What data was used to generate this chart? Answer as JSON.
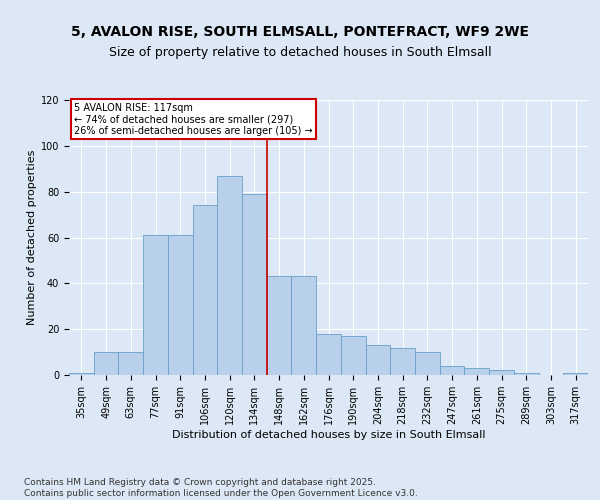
{
  "title_line1": "5, AVALON RISE, SOUTH ELMSALL, PONTEFRACT, WF9 2WE",
  "title_line2": "Size of property relative to detached houses in South Elmsall",
  "xlabel": "Distribution of detached houses by size in South Elmsall",
  "ylabel": "Number of detached properties",
  "bar_color": "#b8d0ea",
  "bar_edge_color": "#6a9fc8",
  "fig_bg_color": "#dce8f5",
  "ax_bg_color": "#dce8f5",
  "grid_color": "#ffffff",
  "vline_color": "#cc0000",
  "annotation_text": "5 AVALON RISE: 117sqm\n← 74% of detached houses are smaller (297)\n26% of semi-detached houses are larger (105) →",
  "annotation_box_color": "#cc0000",
  "categories": [
    "35sqm",
    "49sqm",
    "63sqm",
    "77sqm",
    "91sqm",
    "106sqm",
    "120sqm",
    "134sqm",
    "148sqm",
    "162sqm",
    "176sqm",
    "190sqm",
    "204sqm",
    "218sqm",
    "232sqm",
    "247sqm",
    "261sqm",
    "275sqm",
    "289sqm",
    "303sqm",
    "317sqm"
  ],
  "values": [
    1,
    10,
    10,
    61,
    61,
    74,
    87,
    79,
    43,
    43,
    18,
    17,
    13,
    12,
    10,
    4,
    3,
    2,
    1,
    0,
    1
  ],
  "ylim": [
    0,
    120
  ],
  "yticks": [
    0,
    20,
    40,
    60,
    80,
    100,
    120
  ],
  "vline_pos": 7.5,
  "footer": "Contains HM Land Registry data © Crown copyright and database right 2025.\nContains public sector information licensed under the Open Government Licence v3.0.",
  "title_fontsize": 10,
  "subtitle_fontsize": 9,
  "axis_label_fontsize": 8,
  "tick_fontsize": 7,
  "footer_fontsize": 6.5
}
